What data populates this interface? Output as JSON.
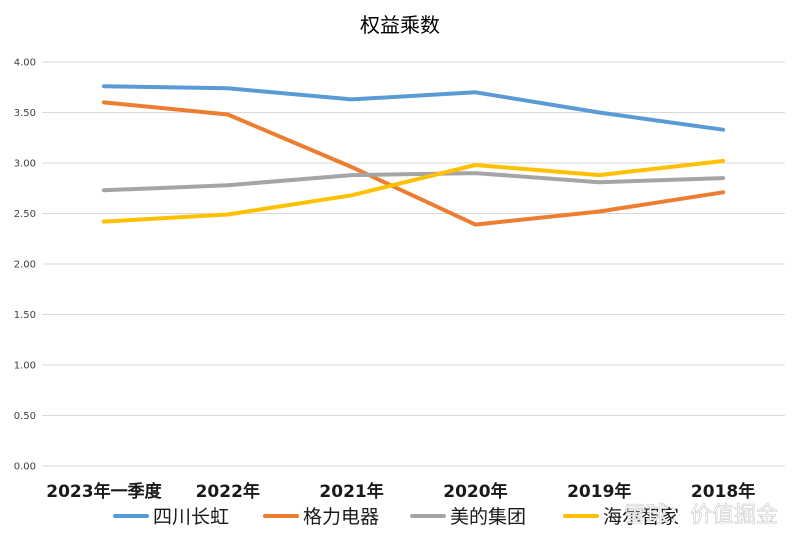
{
  "chart_data": {
    "type": "line",
    "title": "权益乘数",
    "categories": [
      "2023年一季度",
      "2022年",
      "2021年",
      "2020年",
      "2019年",
      "2018年"
    ],
    "ylim": [
      0,
      4
    ],
    "yticks": [
      "0.00",
      "0.50",
      "1.00",
      "1.50",
      "2.00",
      "2.50",
      "3.00",
      "3.50",
      "4.00"
    ],
    "grid": true,
    "legend_position": "bottom",
    "series": [
      {
        "name": "四川长虹",
        "color": "#5B9BD5",
        "values": [
          3.76,
          3.74,
          3.63,
          3.7,
          3.5,
          3.33
        ]
      },
      {
        "name": "格力电器",
        "color": "#ED7D31",
        "values": [
          3.6,
          3.48,
          2.96,
          2.39,
          2.52,
          2.71
        ]
      },
      {
        "name": "美的集团",
        "color": "#A5A5A5",
        "values": [
          2.73,
          2.78,
          2.88,
          2.9,
          2.81,
          2.85
        ]
      },
      {
        "name": "海尔智家",
        "color": "#FFC000",
        "values": [
          2.42,
          2.49,
          2.68,
          2.98,
          2.88,
          3.02
        ]
      }
    ]
  },
  "watermark": "雪球：价值掘金"
}
